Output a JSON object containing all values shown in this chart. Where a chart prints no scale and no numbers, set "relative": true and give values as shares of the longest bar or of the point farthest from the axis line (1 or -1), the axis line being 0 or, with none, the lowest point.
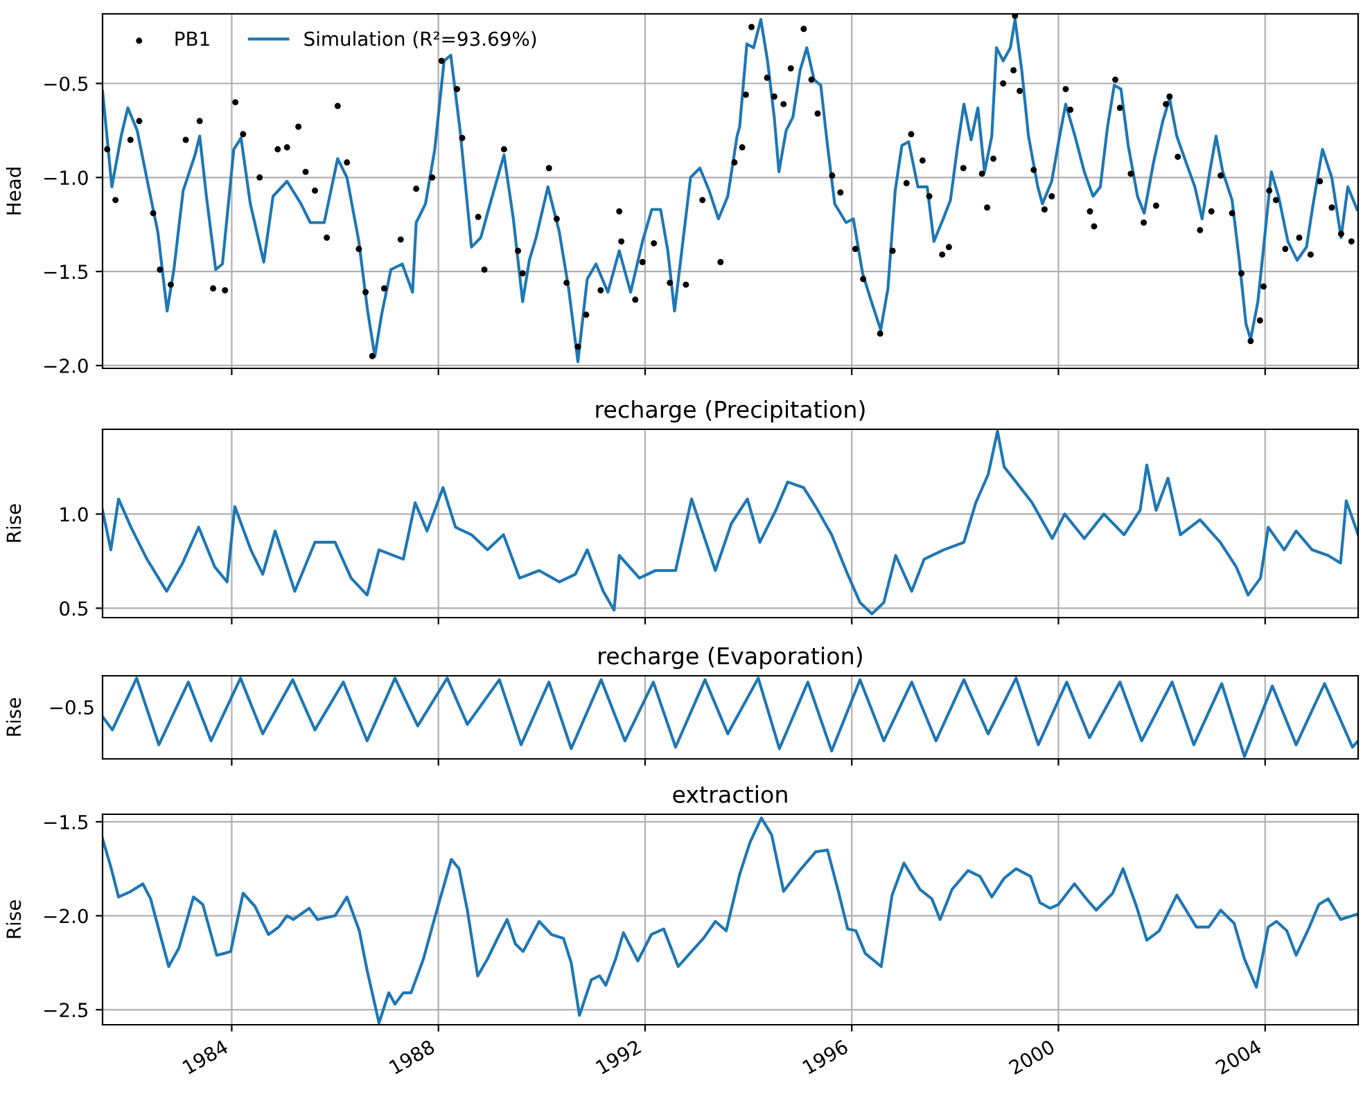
{
  "chart_data": [
    {
      "type": "line",
      "ylabel": "Head",
      "xlim": [
        1981.5,
        2005.8
      ],
      "xticks": [
        1984,
        1988,
        1992,
        1996,
        2000,
        2004
      ],
      "ylim": [
        -2.015,
        -0.13
      ],
      "yticks": [
        {
          "value": -0.5,
          "label": "−0.5"
        },
        {
          "value": -1.0,
          "label": "−1.0"
        },
        {
          "value": -1.5,
          "label": "−1.5"
        },
        {
          "value": -2.0,
          "label": "−2.0"
        }
      ],
      "grid": true,
      "legend": "top left",
      "tick_labels": "y",
      "series": [
        {
          "name": "PB1",
          "type": "scatter",
          "marker": "circle",
          "color": "#000000",
          "x": [
            1981.59,
            1981.75,
            1982.04,
            1982.21,
            1982.48,
            1982.61,
            1982.82,
            1983.11,
            1983.38,
            1983.64,
            1983.87,
            1984.07,
            1984.22,
            1984.54,
            1984.89,
            1985.07,
            1985.29,
            1985.43,
            1985.61,
            1985.84,
            1986.05,
            1986.23,
            1986.46,
            1986.59,
            1986.72,
            1986.95,
            1987.27,
            1987.57,
            1987.88,
            1988.06,
            1988.36,
            1988.46,
            1988.77,
            1988.89,
            1989.27,
            1989.54,
            1989.63,
            1990.14,
            1990.29,
            1990.48,
            1990.7,
            1990.86,
            1991.14,
            1991.5,
            1991.54,
            1991.81,
            1991.95,
            1992.17,
            1992.48,
            1992.79,
            1993.11,
            1993.46,
            1993.73,
            1993.88,
            1993.95,
            1994.06,
            1994.36,
            1994.5,
            1994.68,
            1994.82,
            1995.07,
            1995.22,
            1995.34,
            1995.62,
            1995.78,
            1996.07,
            1996.22,
            1996.55,
            1996.79,
            1997.06,
            1997.15,
            1997.37,
            1997.5,
            1997.75,
            1997.88,
            1998.16,
            1998.52,
            1998.62,
            1998.74,
            1998.93,
            1999.13,
            1999.16,
            1999.25,
            1999.52,
            1999.73,
            1999.87,
            2000.14,
            2000.23,
            2000.61,
            2000.69,
            2001.1,
            2001.19,
            2001.4,
            2001.65,
            2001.89,
            2002.08,
            2002.15,
            2002.31,
            2002.74,
            2002.96,
            2003.14,
            2003.36,
            2003.54,
            2003.72,
            2003.9,
            2003.97,
            2004.08,
            2004.21,
            2004.39,
            2004.66,
            2004.88,
            2005.06,
            2005.29,
            2005.47,
            2005.67
          ],
          "values": [
            -0.85,
            -1.12,
            -0.8,
            -0.7,
            -1.19,
            -1.49,
            -1.57,
            -0.8,
            -0.7,
            -1.59,
            -1.6,
            -0.6,
            -0.77,
            -1.0,
            -0.85,
            -0.84,
            -0.73,
            -0.97,
            -1.07,
            -1.32,
            -0.62,
            -0.92,
            -1.38,
            -1.61,
            -1.95,
            -1.59,
            -1.33,
            -1.06,
            -1.0,
            -0.38,
            -0.53,
            -0.79,
            -1.21,
            -1.49,
            -0.85,
            -1.39,
            -1.51,
            -0.95,
            -1.22,
            -1.56,
            -1.9,
            -1.73,
            -1.6,
            -1.18,
            -1.34,
            -1.65,
            -1.45,
            -1.35,
            -1.56,
            -1.57,
            -1.12,
            -1.45,
            -0.92,
            -0.84,
            -0.56,
            -0.2,
            -0.47,
            -0.57,
            -0.61,
            -0.42,
            -0.21,
            -0.48,
            -0.66,
            -0.99,
            -1.08,
            -1.38,
            -1.54,
            -1.83,
            -1.39,
            -1.03,
            -0.77,
            -0.91,
            -1.1,
            -1.41,
            -1.37,
            -0.95,
            -0.98,
            -1.16,
            -0.9,
            -0.5,
            -0.43,
            -0.14,
            -0.54,
            -0.96,
            -1.17,
            -1.1,
            -0.53,
            -0.64,
            -1.18,
            -1.26,
            -0.48,
            -0.63,
            -0.98,
            -1.24,
            -1.15,
            -0.61,
            -0.57,
            -0.89,
            -1.28,
            -1.18,
            -0.99,
            -1.19,
            -1.51,
            -1.87,
            -1.76,
            -1.58,
            -1.07,
            -1.12,
            -1.38,
            -1.32,
            -1.41,
            -1.02,
            -1.16,
            -1.3,
            -1.34
          ]
        },
        {
          "name": "Simulation (R²=93.69%)",
          "type": "line",
          "marker": "none",
          "color": "#1f77b4",
          "x": [
            1981.5,
            1981.68,
            1981.86,
            1981.99,
            1982.17,
            1982.39,
            1982.57,
            1982.75,
            1982.88,
            1983.06,
            1983.29,
            1983.38,
            1983.51,
            1983.69,
            1983.82,
            1984.04,
            1984.18,
            1984.36,
            1984.62,
            1984.8,
            1985.07,
            1985.34,
            1985.52,
            1985.79,
            1986.05,
            1986.23,
            1986.46,
            1986.63,
            1986.77,
            1986.9,
            1987.08,
            1987.3,
            1987.5,
            1987.57,
            1987.75,
            1987.93,
            1988.11,
            1988.24,
            1988.42,
            1988.64,
            1988.82,
            1989.0,
            1989.27,
            1989.45,
            1989.63,
            1989.76,
            1989.89,
            1990.12,
            1990.34,
            1990.52,
            1990.7,
            1990.88,
            1991.05,
            1991.28,
            1991.5,
            1991.72,
            1991.95,
            1992.13,
            1992.3,
            1992.44,
            1992.57,
            1992.71,
            1992.88,
            1993.06,
            1993.24,
            1993.42,
            1993.6,
            1993.78,
            1993.83,
            1993.97,
            1994.1,
            1994.24,
            1994.37,
            1994.5,
            1994.59,
            1994.73,
            1994.86,
            1995.0,
            1995.13,
            1995.27,
            1995.4,
            1995.53,
            1995.67,
            1995.89,
            1996.03,
            1996.21,
            1996.38,
            1996.56,
            1996.7,
            1996.84,
            1996.97,
            1997.1,
            1997.28,
            1997.46,
            1997.59,
            1997.77,
            1997.91,
            1998.04,
            1998.17,
            1998.31,
            1998.44,
            1998.57,
            1998.71,
            1998.8,
            1998.93,
            1999.07,
            1999.16,
            1999.29,
            1999.42,
            1999.6,
            1999.69,
            1999.87,
            2000.01,
            2000.14,
            2000.32,
            2000.5,
            2000.67,
            2000.81,
            2000.95,
            2001.08,
            2001.21,
            2001.35,
            2001.53,
            2001.66,
            2001.84,
            2002.02,
            2002.15,
            2002.29,
            2002.47,
            2002.64,
            2002.78,
            2002.91,
            2003.05,
            2003.18,
            2003.36,
            2003.5,
            2003.63,
            2003.72,
            2003.86,
            2003.99,
            2004.12,
            2004.26,
            2004.44,
            2004.62,
            2004.8,
            2004.93,
            2005.11,
            2005.29,
            2005.47,
            2005.6,
            2005.78
          ],
          "values": [
            -0.54,
            -1.05,
            -0.78,
            -0.63,
            -0.75,
            -1.05,
            -1.29,
            -1.71,
            -1.49,
            -1.07,
            -0.88,
            -0.78,
            -1.1,
            -1.49,
            -1.46,
            -0.85,
            -0.79,
            -1.14,
            -1.45,
            -1.1,
            -1.02,
            -1.14,
            -1.24,
            -1.24,
            -0.9,
            -1.0,
            -1.34,
            -1.71,
            -1.95,
            -1.73,
            -1.49,
            -1.46,
            -1.61,
            -1.24,
            -1.14,
            -0.85,
            -0.38,
            -0.35,
            -0.75,
            -1.37,
            -1.32,
            -1.14,
            -0.88,
            -1.22,
            -1.66,
            -1.44,
            -1.32,
            -1.05,
            -1.29,
            -1.59,
            -1.98,
            -1.54,
            -1.46,
            -1.61,
            -1.39,
            -1.61,
            -1.34,
            -1.17,
            -1.17,
            -1.39,
            -1.71,
            -1.39,
            -1.0,
            -0.95,
            -1.07,
            -1.22,
            -1.1,
            -0.78,
            -0.73,
            -0.29,
            -0.31,
            -0.16,
            -0.38,
            -0.68,
            -0.97,
            -0.75,
            -0.68,
            -0.43,
            -0.31,
            -0.48,
            -0.51,
            -0.83,
            -1.14,
            -1.24,
            -1.22,
            -1.51,
            -1.66,
            -1.81,
            -1.59,
            -1.07,
            -0.83,
            -0.81,
            -1.05,
            -1.05,
            -1.34,
            -1.22,
            -1.12,
            -0.85,
            -0.61,
            -0.8,
            -0.63,
            -0.97,
            -0.78,
            -0.31,
            -0.38,
            -0.31,
            -0.16,
            -0.43,
            -0.78,
            -1.05,
            -1.14,
            -1.02,
            -0.8,
            -0.61,
            -0.78,
            -0.97,
            -1.1,
            -1.05,
            -0.73,
            -0.51,
            -0.53,
            -0.83,
            -1.1,
            -1.19,
            -0.92,
            -0.7,
            -0.58,
            -0.78,
            -0.92,
            -1.05,
            -1.22,
            -1.0,
            -0.78,
            -0.97,
            -1.12,
            -1.44,
            -1.78,
            -1.86,
            -1.66,
            -1.32,
            -0.97,
            -1.1,
            -1.34,
            -1.44,
            -1.37,
            -1.14,
            -0.85,
            -1.0,
            -1.32,
            -1.05,
            -1.17
          ]
        }
      ]
    },
    {
      "type": "line",
      "title": "recharge (Precipitation)",
      "ylabel": "Rise",
      "xlim": [
        1981.5,
        2005.8
      ],
      "xticks": [
        1984,
        1988,
        1992,
        1996,
        2000,
        2004
      ],
      "ylim": [
        0.45,
        1.45
      ],
      "yticks": [
        0.5,
        {
          "value": 1.0,
          "label": "1.0"
        }
      ],
      "grid": true,
      "tick_labels": "y",
      "series": [
        {
          "color": "#1f77b4",
          "x": [
            1981.5,
            1981.66,
            1981.81,
            1982.05,
            1982.36,
            1982.74,
            1983.05,
            1983.36,
            1983.67,
            1983.91,
            1984.06,
            1984.37,
            1984.6,
            1984.84,
            1985.22,
            1985.61,
            1986.0,
            1986.31,
            1986.62,
            1986.85,
            1987.32,
            1987.55,
            1987.78,
            1988.09,
            1988.33,
            1988.64,
            1988.95,
            1989.26,
            1989.57,
            1989.95,
            1990.34,
            1990.65,
            1990.88,
            1991.19,
            1991.4,
            1991.5,
            1991.89,
            1992.2,
            1992.59,
            1992.9,
            1993.13,
            1993.36,
            1993.67,
            1993.98,
            1994.22,
            1994.53,
            1994.76,
            1995.07,
            1995.3,
            1995.61,
            1995.92,
            1996.16,
            1996.39,
            1996.62,
            1996.85,
            1997.16,
            1997.4,
            1997.78,
            1998.17,
            1998.4,
            1998.64,
            1998.82,
            1998.95,
            1999.18,
            1999.49,
            1999.88,
            2000.12,
            2000.5,
            2000.88,
            2001.27,
            2001.58,
            2001.71,
            2001.89,
            2002.12,
            2002.36,
            2002.74,
            2003.13,
            2003.44,
            2003.67,
            2003.91,
            2004.06,
            2004.37,
            2004.6,
            2004.91,
            2005.22,
            2005.46,
            2005.57,
            2005.8
          ],
          "values": [
            1.02,
            0.81,
            1.08,
            0.93,
            0.76,
            0.59,
            0.74,
            0.93,
            0.72,
            0.64,
            1.04,
            0.81,
            0.68,
            0.91,
            0.59,
            0.85,
            0.85,
            0.66,
            0.57,
            0.81,
            0.76,
            1.06,
            0.91,
            1.14,
            0.93,
            0.89,
            0.81,
            0.89,
            0.66,
            0.7,
            0.64,
            0.68,
            0.81,
            0.59,
            0.49,
            0.78,
            0.66,
            0.7,
            0.7,
            1.08,
            0.89,
            0.7,
            0.95,
            1.08,
            0.85,
            1.02,
            1.17,
            1.14,
            1.04,
            0.89,
            0.68,
            0.53,
            0.47,
            0.53,
            0.78,
            0.59,
            0.76,
            0.81,
            0.85,
            1.06,
            1.21,
            1.44,
            1.25,
            1.17,
            1.06,
            0.87,
            1.0,
            0.87,
            1.0,
            0.89,
            1.02,
            1.26,
            1.02,
            1.19,
            0.89,
            0.97,
            0.85,
            0.72,
            0.57,
            0.66,
            0.93,
            0.81,
            0.91,
            0.81,
            0.78,
            0.74,
            1.07,
            0.89
          ]
        }
      ]
    },
    {
      "type": "line",
      "title": "recharge (Evaporation)",
      "ylabel": "Rise",
      "xlim": [
        1981.5,
        2005.8
      ],
      "xticks": [
        1984,
        1988,
        1992,
        1996,
        2000,
        2004
      ],
      "relative": true,
      "annotations": [
        "−0.5"
      ],
      "grid": "x",
      "tick_labels": false,
      "series": [
        {
          "color": "#1f77b4",
          "x": [
            1981.5,
            1981.69,
            1982.16,
            1982.59,
            1983.16,
            1983.6,
            1984.17,
            1984.6,
            1985.18,
            1985.61,
            1986.16,
            1986.62,
            1987.16,
            1987.6,
            1988.17,
            1988.56,
            1989.18,
            1989.6,
            1990.14,
            1990.57,
            1991.15,
            1991.61,
            1992.16,
            1992.59,
            1993.16,
            1993.6,
            1994.19,
            1994.6,
            1995.15,
            1995.61,
            1996.16,
            1996.62,
            1997.16,
            1997.63,
            1998.17,
            1998.64,
            1999.18,
            1999.61,
            2000.16,
            2000.6,
            2001.19,
            2001.61,
            2002.2,
            2002.62,
            2003.16,
            2003.6,
            2004.14,
            2004.6,
            2005.15,
            2005.69,
            2005.8
          ],
          "values": [
            0.51,
            0.34,
            1.0,
            0.15,
            0.95,
            0.2,
            1.0,
            0.29,
            0.98,
            0.34,
            0.95,
            0.2,
            1.0,
            0.39,
            1.0,
            0.41,
            0.98,
            0.15,
            0.95,
            0.1,
            0.98,
            0.2,
            0.95,
            0.12,
            0.98,
            0.29,
            1.0,
            0.1,
            0.95,
            0.07,
            0.98,
            0.2,
            0.95,
            0.2,
            0.98,
            0.29,
            1.0,
            0.15,
            0.95,
            0.24,
            0.95,
            0.2,
            0.95,
            0.15,
            0.93,
            0.0,
            0.9,
            0.15,
            0.93,
            0.12,
            0.2
          ]
        }
      ]
    },
    {
      "type": "line",
      "title": "extraction",
      "ylabel": "Rise",
      "xlim": [
        1981.5,
        2005.8
      ],
      "xticks": [
        1984,
        1988,
        1992,
        1996,
        2000,
        2004
      ],
      "ylim": [
        -2.58,
        -1.46
      ],
      "yticks": [
        {
          "value": -1.5,
          "label": "−1.5"
        },
        {
          "value": -2.0,
          "label": "−2.0"
        },
        {
          "value": -2.5,
          "label": "−2.5"
        }
      ],
      "grid": true,
      "series": [
        {
          "color": "#1f77b4",
          "x": [
            1981.5,
            1981.66,
            1981.81,
            1982.05,
            1982.28,
            1982.43,
            1982.78,
            1982.98,
            1983.26,
            1983.44,
            1983.71,
            1983.86,
            1983.98,
            1984.22,
            1984.45,
            1984.71,
            1984.91,
            1985.07,
            1985.19,
            1985.5,
            1985.66,
            1986.0,
            1986.23,
            1986.47,
            1986.62,
            1986.85,
            1987.04,
            1987.16,
            1987.32,
            1987.47,
            1987.71,
            1987.94,
            1988.25,
            1988.4,
            1988.56,
            1988.76,
            1988.95,
            1989.18,
            1989.33,
            1989.49,
            1989.64,
            1989.95,
            1990.19,
            1990.42,
            1990.57,
            1990.73,
            1990.96,
            1991.12,
            1991.24,
            1991.43,
            1991.58,
            1991.86,
            1992.12,
            1992.36,
            1992.64,
            1992.9,
            1993.13,
            1993.36,
            1993.57,
            1993.83,
            1994.03,
            1994.25,
            1994.45,
            1994.68,
            1994.99,
            1995.3,
            1995.53,
            1995.74,
            1995.92,
            1996.08,
            1996.26,
            1996.57,
            1996.78,
            1997.01,
            1997.32,
            1997.55,
            1997.71,
            1997.94,
            1998.25,
            1998.48,
            1998.71,
            1998.95,
            1999.18,
            1999.46,
            1999.64,
            1999.84,
            2000.0,
            2000.31,
            2000.54,
            2000.73,
            2001.05,
            2001.25,
            2001.51,
            2001.71,
            2001.95,
            2002.29,
            2002.67,
            2002.91,
            2003.14,
            2003.4,
            2003.6,
            2003.83,
            2004.06,
            2004.22,
            2004.42,
            2004.6,
            2004.84,
            2005.04,
            2005.22,
            2005.46,
            2005.8
          ],
          "values": [
            -1.59,
            -1.74,
            -1.9,
            -1.87,
            -1.83,
            -1.91,
            -2.27,
            -2.17,
            -1.9,
            -1.94,
            -2.21,
            -2.2,
            -2.19,
            -1.88,
            -1.95,
            -2.1,
            -2.06,
            -2.0,
            -2.02,
            -1.96,
            -2.02,
            -2.0,
            -1.9,
            -2.08,
            -2.29,
            -2.57,
            -2.41,
            -2.47,
            -2.41,
            -2.41,
            -2.23,
            -2.0,
            -1.7,
            -1.75,
            -1.97,
            -2.32,
            -2.23,
            -2.1,
            -2.02,
            -2.15,
            -2.19,
            -2.03,
            -2.1,
            -2.12,
            -2.25,
            -2.53,
            -2.34,
            -2.32,
            -2.37,
            -2.23,
            -2.09,
            -2.24,
            -2.1,
            -2.07,
            -2.27,
            -2.19,
            -2.12,
            -2.03,
            -2.08,
            -1.78,
            -1.61,
            -1.48,
            -1.57,
            -1.87,
            -1.76,
            -1.66,
            -1.65,
            -1.87,
            -2.07,
            -2.08,
            -2.2,
            -2.27,
            -1.89,
            -1.72,
            -1.86,
            -1.91,
            -2.02,
            -1.86,
            -1.76,
            -1.79,
            -1.9,
            -1.8,
            -1.75,
            -1.79,
            -1.93,
            -1.96,
            -1.94,
            -1.83,
            -1.91,
            -1.97,
            -1.88,
            -1.75,
            -1.95,
            -2.13,
            -2.08,
            -1.89,
            -2.06,
            -2.06,
            -1.97,
            -2.04,
            -2.23,
            -2.38,
            -2.06,
            -2.03,
            -2.08,
            -2.21,
            -2.07,
            -1.94,
            -1.91,
            -2.02,
            -1.99
          ]
        }
      ]
    }
  ]
}
